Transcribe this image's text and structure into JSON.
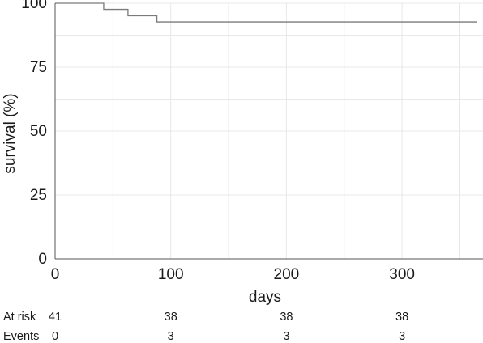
{
  "chart_data": {
    "type": "line",
    "title": "",
    "xlabel": "days",
    "ylabel": "survival (%)",
    "xlim": [
      0,
      370
    ],
    "ylim": [
      0,
      100
    ],
    "grid": true,
    "x_ticks": [
      "0",
      "100",
      "200",
      "300"
    ],
    "y_ticks": [
      "0",
      "25",
      "50",
      "75",
      "100"
    ],
    "series": [
      {
        "step": true,
        "x": [
          0,
          42,
          63,
          88,
          365
        ],
        "y": [
          100,
          97.6,
          95.1,
          92.7,
          92.7
        ]
      }
    ]
  },
  "risk_table": {
    "rows": [
      {
        "label": "At risk",
        "values": [
          "41",
          "38",
          "38",
          "38"
        ]
      },
      {
        "label": "Events",
        "values": [
          "0",
          "3",
          "3",
          "3"
        ]
      }
    ]
  },
  "colors": {
    "line": "#7a7a7a",
    "grid": "#e8e8e8",
    "axis": "#555555"
  }
}
